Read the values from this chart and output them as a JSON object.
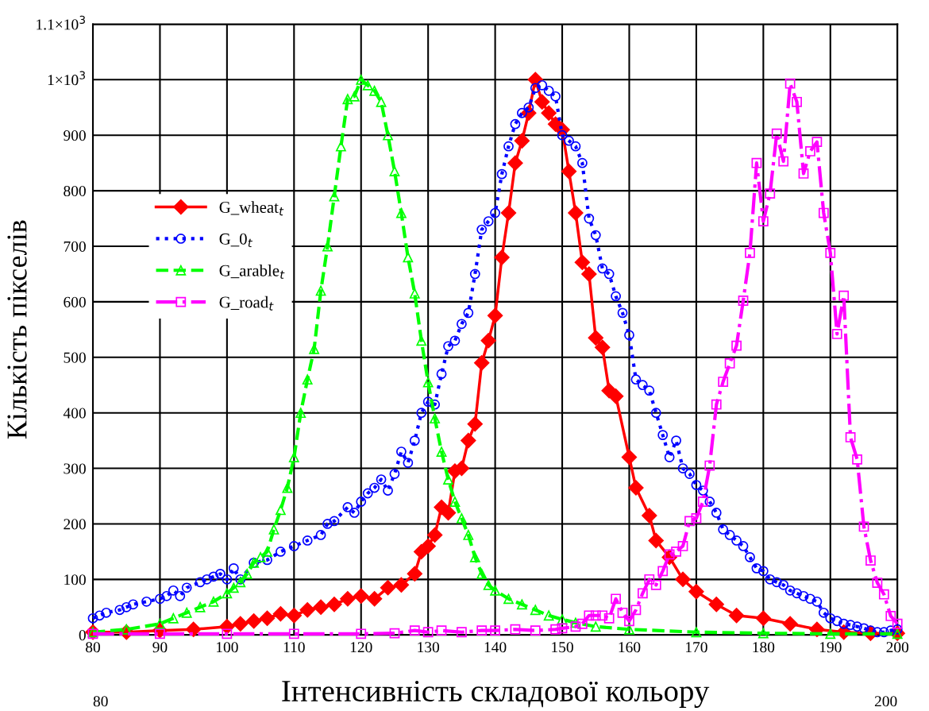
{
  "chart_data": {
    "type": "line",
    "xlabel": "Інтенсивність складової кольору",
    "ylabel": "Кількість пікселів",
    "xlim": [
      80,
      200
    ],
    "xticks": [
      80,
      90,
      100,
      110,
      120,
      130,
      140,
      150,
      160,
      170,
      180,
      190,
      200
    ],
    "ylim": [
      0,
      1100
    ],
    "yticks": [
      0,
      100,
      200,
      300,
      400,
      500,
      600,
      700,
      800,
      900,
      {
        "value": 1000,
        "label": "1×10$^{3}$"
      },
      {
        "value": 1100,
        "label": "1.1×10$^{3}$"
      }
    ],
    "grid": true,
    "legend": "left",
    "annotations": [
      "80",
      "200"
    ],
    "series": [
      {
        "name": "G_wheat$_{t}$",
        "color": "#ff0000",
        "marker": "diamond",
        "line_style": "solid",
        "x": [
          80,
          85,
          90,
          95,
          100,
          102,
          104,
          106,
          108,
          110,
          112,
          114,
          116,
          118,
          120,
          122,
          124,
          126,
          128,
          129,
          130,
          131,
          132,
          133,
          134,
          135,
          136,
          137,
          138,
          139,
          140,
          141,
          142,
          143,
          144,
          145,
          146,
          147,
          148,
          149,
          150,
          151,
          152,
          153,
          154,
          155,
          156,
          157,
          158,
          160,
          161,
          163,
          164,
          166,
          168,
          170,
          173,
          176,
          180,
          184,
          188,
          192,
          196,
          200
        ],
        "values": [
          5,
          5,
          8,
          10,
          15,
          20,
          25,
          30,
          38,
          35,
          45,
          50,
          55,
          65,
          70,
          65,
          85,
          90,
          110,
          150,
          160,
          180,
          230,
          220,
          295,
          300,
          350,
          380,
          490,
          530,
          575,
          680,
          760,
          850,
          890,
          940,
          1000,
          960,
          940,
          920,
          910,
          835,
          760,
          671,
          650,
          535,
          518,
          440,
          430,
          320,
          265,
          215,
          170,
          140,
          100,
          78,
          55,
          35,
          30,
          20,
          10,
          5,
          3,
          3
        ]
      },
      {
        "name": "G_0$_{t}$",
        "color": "#0000ff",
        "marker": "circle",
        "line_style": "dotted",
        "x": [
          80,
          81,
          82,
          84,
          85,
          86,
          88,
          90,
          91,
          92,
          93,
          94,
          96,
          97,
          98,
          99,
          100,
          101,
          102,
          104,
          106,
          108,
          110,
          112,
          114,
          115,
          116,
          118,
          119,
          120,
          121,
          122,
          123,
          124,
          125,
          126,
          127,
          128,
          129,
          130,
          131,
          132,
          133,
          134,
          135,
          136,
          137,
          138,
          139,
          140,
          141,
          142,
          143,
          144,
          145,
          146,
          147,
          148,
          149,
          150,
          151,
          152,
          153,
          154,
          155,
          156,
          157,
          158,
          159,
          160,
          161,
          162,
          163,
          164,
          165,
          166,
          167,
          168,
          169,
          170,
          171,
          172,
          173,
          174,
          175,
          176,
          177,
          178,
          179,
          180,
          181,
          182,
          183,
          184,
          185,
          186,
          187,
          188,
          189,
          190,
          191,
          192,
          193,
          194,
          195,
          196,
          197,
          198,
          199,
          200
        ],
        "values": [
          30,
          35,
          40,
          45,
          50,
          55,
          60,
          65,
          70,
          80,
          70,
          85,
          95,
          100,
          105,
          110,
          100,
          120,
          100,
          130,
          135,
          150,
          160,
          170,
          180,
          200,
          205,
          230,
          220,
          240,
          255,
          265,
          280,
          260,
          290,
          330,
          310,
          350,
          400,
          420,
          415,
          470,
          520,
          530,
          560,
          580,
          650,
          730,
          745,
          760,
          830,
          880,
          920,
          940,
          950,
          985,
          990,
          980,
          970,
          900,
          890,
          880,
          850,
          750,
          720,
          660,
          650,
          610,
          580,
          540,
          460,
          450,
          440,
          400,
          360,
          320,
          350,
          300,
          290,
          270,
          260,
          240,
          220,
          190,
          180,
          170,
          160,
          140,
          120,
          115,
          100,
          95,
          90,
          80,
          75,
          70,
          65,
          60,
          40,
          30,
          25,
          20,
          18,
          15,
          12,
          8,
          5,
          5,
          8,
          10
        ]
      },
      {
        "name": "G_arable$_{t}$",
        "color": "#00ff00",
        "marker": "triangle",
        "line_style": "dashed",
        "x": [
          80,
          85,
          90,
          92,
          94,
          96,
          98,
          100,
          101,
          102,
          103,
          104,
          105,
          106,
          107,
          108,
          109,
          110,
          111,
          112,
          113,
          114,
          115,
          116,
          117,
          118,
          119,
          120,
          121,
          122,
          123,
          124,
          125,
          126,
          127,
          128,
          129,
          130,
          131,
          132,
          133,
          134,
          135,
          136,
          137,
          138,
          139,
          140,
          142,
          144,
          146,
          148,
          150,
          152,
          155,
          160,
          170,
          180,
          190,
          200
        ],
        "values": [
          5,
          10,
          20,
          30,
          40,
          50,
          60,
          75,
          85,
          95,
          110,
          130,
          140,
          150,
          190,
          225,
          265,
          320,
          400,
          460,
          515,
          620,
          700,
          790,
          880,
          965,
          970,
          1000,
          990,
          980,
          960,
          900,
          835,
          760,
          680,
          615,
          530,
          455,
          390,
          330,
          280,
          240,
          210,
          180,
          140,
          110,
          90,
          80,
          65,
          55,
          45,
          35,
          28,
          22,
          15,
          10,
          5,
          3,
          2,
          2
        ]
      },
      {
        "name": "G_road$_{t}$",
        "color": "#ff00ff",
        "marker": "square",
        "line_style": "dashdot",
        "x": [
          80,
          90,
          100,
          110,
          120,
          125,
          128,
          130,
          132,
          135,
          138,
          140,
          143,
          146,
          149,
          150,
          152,
          153,
          154,
          155,
          156,
          157,
          158,
          159,
          160,
          161,
          162,
          163,
          164,
          165,
          166,
          167,
          168,
          169,
          170,
          171,
          172,
          173,
          174,
          175,
          176,
          177,
          178,
          179,
          180,
          181,
          182,
          183,
          184,
          185,
          186,
          187,
          188,
          189,
          190,
          191,
          192,
          193,
          194,
          195,
          196,
          197,
          198,
          199,
          200
        ],
        "values": [
          2,
          2,
          2,
          2,
          2,
          3,
          8,
          5,
          8,
          5,
          8,
          8,
          10,
          8,
          10,
          12,
          15,
          20,
          35,
          35,
          35,
          30,
          65,
          40,
          25,
          45,
          75,
          100,
          90,
          115,
          145,
          150,
          160,
          205,
          210,
          240,
          305,
          415,
          456,
          489,
          521,
          602,
          688,
          850,
          745,
          795,
          903,
          853,
          993,
          960,
          831,
          871,
          888,
          760,
          688,
          542,
          611,
          356,
          316,
          195,
          134,
          94,
          73,
          34,
          20
        ]
      }
    ]
  }
}
